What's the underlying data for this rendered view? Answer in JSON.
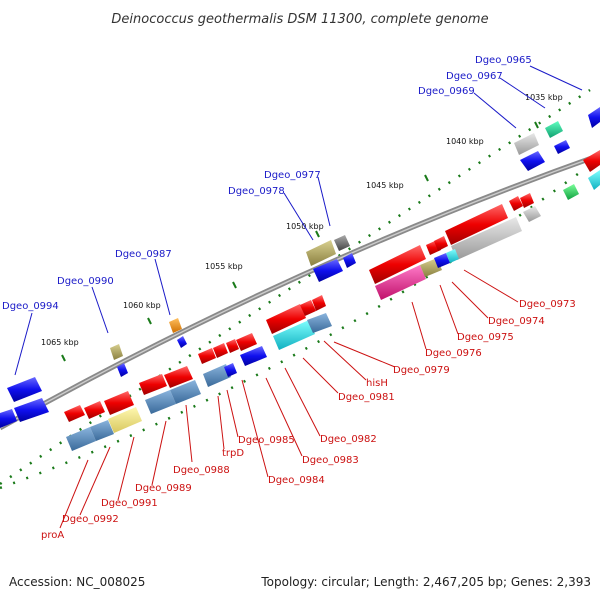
{
  "title": "Deinococcus geothermalis DSM 11300, complete genome",
  "footer": {
    "accession": "Accession: NC_008025",
    "summary": "Topology: circular; Length: 2,467,205 bp; Genes: 2,393"
  },
  "kbp_ticks": [
    "1035 kbp",
    "1040 kbp",
    "1045 kbp",
    "1050 kbp",
    "1055 kbp",
    "1060 kbp",
    "1065 kbp"
  ],
  "labels_top": [
    "Dgeo_0965",
    "Dgeo_0967",
    "Dgeo_0969",
    "Dgeo_0977",
    "Dgeo_0978",
    "Dgeo_0987",
    "Dgeo_0990",
    "Dgeo_0994"
  ],
  "labels_bottom": [
    "Dgeo_0973",
    "Dgeo_0974",
    "Dgeo_0975",
    "Dgeo_0976",
    "Dgeo_0979",
    "hisH",
    "Dgeo_0981",
    "Dgeo_0982",
    "Dgeo_0983",
    "Dgeo_0984",
    "Dgeo_0985",
    "trpD",
    "Dgeo_0988",
    "Dgeo_0989",
    "Dgeo_0991",
    "Dgeo_0992",
    "proA"
  ],
  "colors": {
    "top_label": "#1a1ac8",
    "bottom_label": "#cc1111",
    "backbone": "#888888",
    "tick": "#1a7a1a"
  }
}
